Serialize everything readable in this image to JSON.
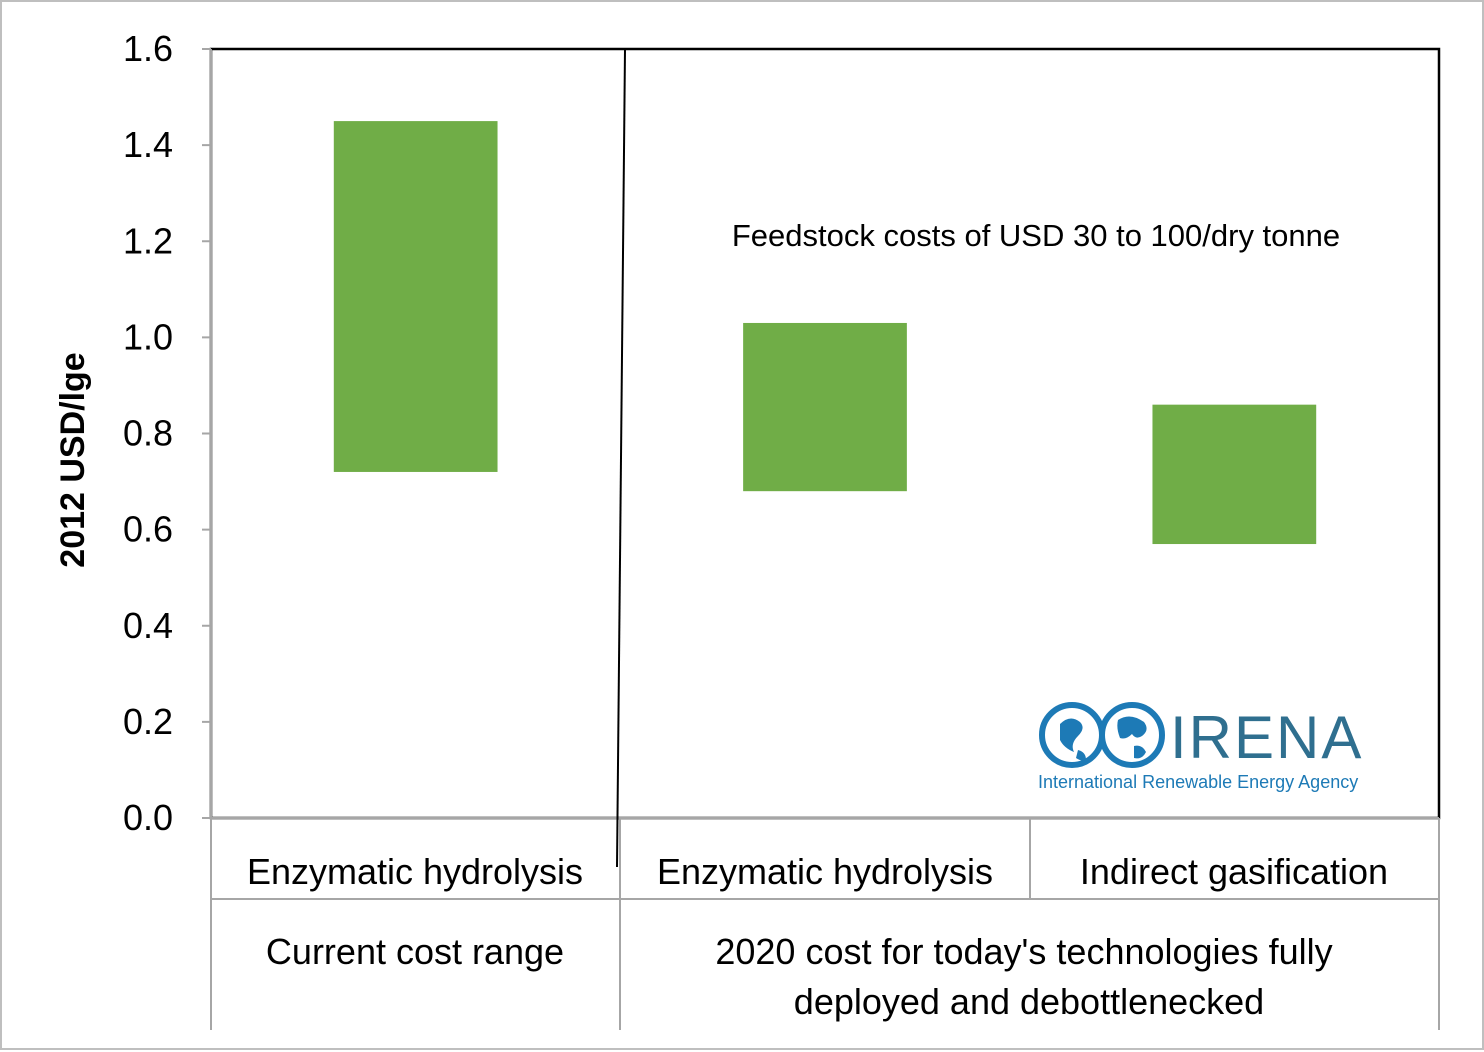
{
  "chart_data": {
    "type": "bar",
    "subtype": "floating-range",
    "ylabel": "2012 USD/lge",
    "ylim": [
      0,
      1.6
    ],
    "yticks": [
      "0.0",
      "0.2",
      "0.4",
      "0.6",
      "0.8",
      "1.0",
      "1.2",
      "1.4",
      "1.6"
    ],
    "categories": [
      "Enzymatic hydrolysis",
      "Enzymatic hydrolysis",
      "Indirect gasification"
    ],
    "groups": [
      {
        "label": "Current cost range",
        "span": 1
      },
      {
        "label": "2020 cost for today's technologies fully deployed and debottlenecked",
        "span": 2
      }
    ],
    "ranges": [
      {
        "low": 0.72,
        "high": 1.45
      },
      {
        "low": 0.68,
        "high": 1.03
      },
      {
        "low": 0.57,
        "high": 0.86
      }
    ],
    "bar_color": "#70ad47",
    "annotation": "Feedstock costs of USD 30 to 100/dry tonne",
    "grid": false
  },
  "logo": {
    "name": "IRENA",
    "tagline": "International Renewable Energy Agency",
    "icon": "globe-infinity-icon",
    "color": "#1d7ab6"
  }
}
